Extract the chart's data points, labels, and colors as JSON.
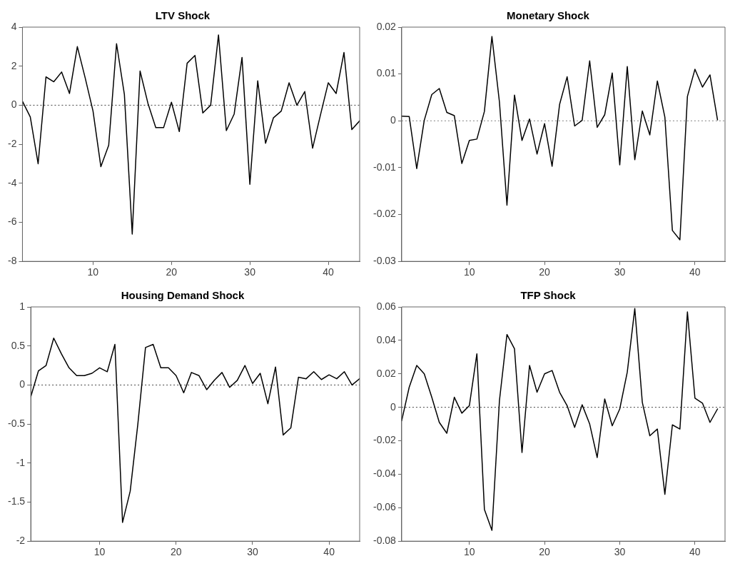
{
  "chart_data": [
    {
      "type": "line",
      "title": "LTV Shock",
      "x": [
        1,
        2,
        3,
        4,
        5,
        6,
        7,
        8,
        9,
        10,
        11,
        12,
        13,
        14,
        15,
        16,
        17,
        18,
        19,
        20,
        21,
        22,
        23,
        24,
        25,
        26,
        27,
        28,
        29,
        30,
        31,
        32,
        33,
        34,
        35,
        36,
        37,
        38,
        39,
        40,
        41,
        42,
        43,
        44
      ],
      "xlim": [
        1,
        44
      ],
      "xticks": [
        10,
        20,
        30,
        40
      ],
      "ylim": [
        -8,
        4
      ],
      "yticks": [
        -8,
        -6,
        -4,
        -2,
        0,
        2,
        4
      ],
      "grid": false,
      "marker": "none",
      "line_style": "solid",
      "series": [
        {
          "color": "#000000",
          "values": [
            0.2,
            -0.6,
            -3.0,
            1.45,
            1.2,
            1.7,
            0.6,
            3.0,
            1.4,
            -0.3,
            -3.15,
            -2.05,
            3.15,
            0.55,
            -6.6,
            1.75,
            0.1,
            -1.15,
            -1.15,
            0.15,
            -1.35,
            2.15,
            2.55,
            -0.4,
            0,
            3.6,
            -1.3,
            -0.45,
            2.45,
            -4.05,
            1.25,
            -1.95,
            -0.65,
            -0.3,
            1.15,
            0,
            0.7,
            -2.2,
            -0.5,
            1.15,
            0.6,
            2.7,
            -1.25,
            -0.8
          ]
        }
      ],
      "ref_lines": [
        {
          "axis": "y",
          "value": 0,
          "line_style": "dotted",
          "color": "#404040"
        }
      ]
    },
    {
      "type": "line",
      "title": "Monetary Shock",
      "x": [
        1,
        2,
        3,
        4,
        5,
        6,
        7,
        8,
        9,
        10,
        11,
        12,
        13,
        14,
        15,
        16,
        17,
        18,
        19,
        20,
        21,
        22,
        23,
        24,
        25,
        26,
        27,
        28,
        29,
        30,
        31,
        32,
        33,
        34,
        35,
        36,
        37,
        38,
        39,
        40,
        41,
        42,
        43
      ],
      "xlim": [
        1,
        44
      ],
      "xticks": [
        10,
        20,
        30,
        40
      ],
      "ylim": [
        -0.03,
        0.02
      ],
      "yticks": [
        -0.03,
        -0.02,
        -0.01,
        0,
        0.01,
        0.02
      ],
      "grid": false,
      "marker": "none",
      "line_style": "solid",
      "series": [
        {
          "color": "#000000",
          "values": [
            0.001,
            0.0009,
            -0.0102,
            0.0001,
            0.0056,
            0.0069,
            0.0018,
            0.0011,
            -0.0091,
            -0.0042,
            -0.0039,
            0.002,
            0.018,
            0.004,
            -0.018,
            0.0055,
            -0.0042,
            0.0004,
            -0.0071,
            -0.0006,
            -0.0097,
            0.0035,
            0.0094,
            -0.0011,
            0.0001,
            0.0128,
            -0.0014,
            0.0013,
            0.0102,
            -0.0094,
            0.0116,
            -0.0083,
            0.0021,
            -0.003,
            0.0085,
            0.0008,
            -0.0234,
            -0.0254,
            0.0052,
            0.011,
            0.0072,
            0.0098,
            0.0002
          ]
        }
      ],
      "ref_lines": [
        {
          "axis": "y",
          "value": 0,
          "line_style": "dotted",
          "color": "#808080"
        }
      ]
    },
    {
      "type": "line",
      "title": "Housing Demand Shock",
      "x": [
        1,
        2,
        3,
        4,
        5,
        6,
        7,
        8,
        9,
        10,
        11,
        12,
        13,
        14,
        15,
        16,
        17,
        18,
        19,
        20,
        21,
        22,
        23,
        24,
        25,
        26,
        27,
        28,
        29,
        30,
        31,
        32,
        33,
        34,
        35,
        36,
        37,
        38,
        39,
        40,
        41,
        42,
        43,
        44
      ],
      "xlim": [
        1,
        44
      ],
      "xticks": [
        10,
        20,
        30,
        40
      ],
      "ylim": [
        -2,
        1
      ],
      "yticks": [
        -2,
        -1.5,
        -1,
        -0.5,
        0,
        0.5,
        1
      ],
      "grid": false,
      "marker": "none",
      "line_style": "solid",
      "series": [
        {
          "color": "#000000",
          "values": [
            -0.15,
            0.18,
            0.25,
            0.6,
            0.4,
            0.22,
            0.12,
            0.12,
            0.15,
            0.22,
            0.17,
            0.52,
            -1.76,
            -1.36,
            -0.5,
            0.48,
            0.52,
            0.22,
            0.22,
            0.12,
            -0.1,
            0.16,
            0.12,
            -0.06,
            0.06,
            0.16,
            -0.03,
            0.06,
            0.25,
            0.02,
            0.15,
            -0.24,
            0.23,
            -0.64,
            -0.55,
            0.1,
            0.08,
            0.17,
            0.07,
            0.13,
            0.08,
            0.17,
            0.0,
            0.08
          ]
        }
      ],
      "ref_lines": [
        {
          "axis": "y",
          "value": 0,
          "line_style": "dotted",
          "color": "#404040"
        }
      ]
    },
    {
      "type": "line",
      "title": "TFP Shock",
      "x": [
        1,
        2,
        3,
        4,
        5,
        6,
        7,
        8,
        9,
        10,
        11,
        12,
        13,
        14,
        15,
        16,
        17,
        18,
        19,
        20,
        21,
        22,
        23,
        24,
        25,
        26,
        27,
        28,
        29,
        30,
        31,
        32,
        33,
        34,
        35,
        36,
        37,
        38,
        39,
        40,
        41,
        42,
        43
      ],
      "xlim": [
        1,
        44
      ],
      "xticks": [
        10,
        20,
        30,
        40
      ],
      "ylim": [
        -0.08,
        0.06
      ],
      "yticks": [
        -0.08,
        -0.06,
        -0.04,
        -0.02,
        0,
        0.02,
        0.04,
        0.06
      ],
      "grid": false,
      "marker": "none",
      "line_style": "solid",
      "series": [
        {
          "color": "#000000",
          "values": [
            -0.008,
            0.012,
            0.025,
            0.02,
            0.006,
            -0.009,
            -0.0155,
            0.006,
            -0.0035,
            0.001,
            0.032,
            -0.061,
            -0.0735,
            0.004,
            0.0435,
            0.035,
            -0.027,
            0.025,
            0.009,
            0.02,
            0.022,
            0.009,
            0.001,
            -0.012,
            0.0015,
            -0.01,
            -0.03,
            0.005,
            -0.011,
            -0.001,
            0.021,
            0.059,
            0.003,
            -0.017,
            -0.013,
            -0.052,
            -0.0105,
            -0.013,
            0.057,
            0.0055,
            0.0025,
            -0.009,
            -0.001
          ]
        }
      ],
      "ref_lines": [
        {
          "axis": "y",
          "value": 0,
          "line_style": "dotted",
          "color": "#404040"
        }
      ]
    }
  ]
}
